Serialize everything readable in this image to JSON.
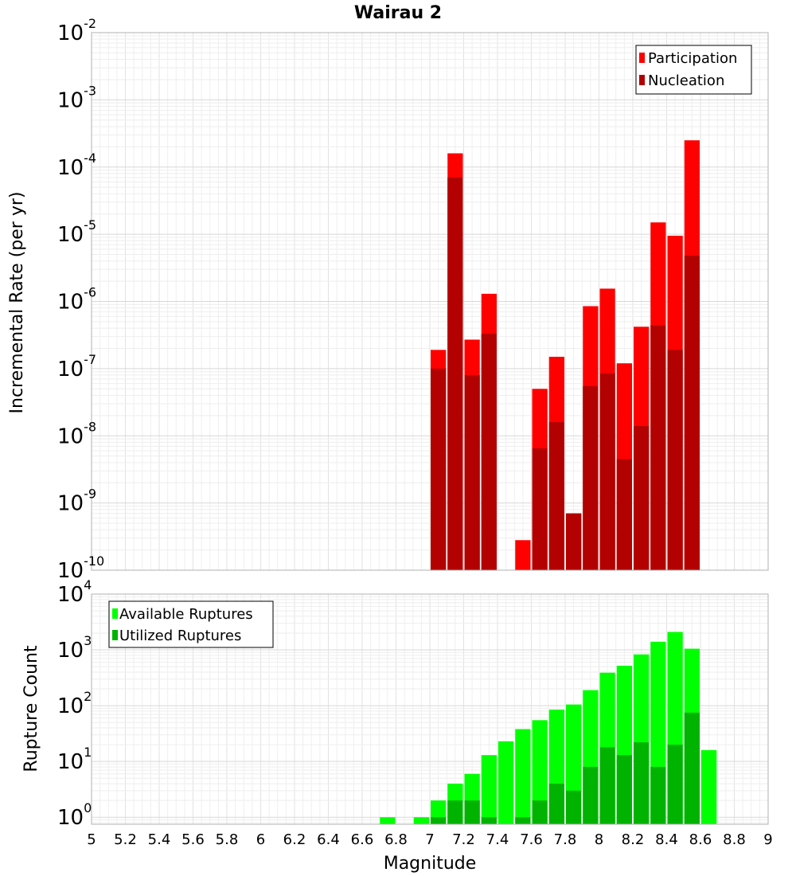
{
  "chart_data": [
    {
      "type": "bar",
      "title": "Wairau 2",
      "xlabel": "",
      "ylabel": "Incremental Rate (per yr)",
      "yscale": "log",
      "ylim": [
        1e-10,
        0.01
      ],
      "xlim": [
        5,
        9
      ],
      "grid": true,
      "legend_position": "top-right",
      "legend": [
        "Participation",
        "Nucleation"
      ],
      "colors": {
        "Participation": "#ff0000",
        "Nucleation": "#b30000"
      },
      "x": [
        7.05,
        7.15,
        7.25,
        7.35,
        7.55,
        7.65,
        7.75,
        7.85,
        7.95,
        8.05,
        8.15,
        8.25,
        8.35,
        8.45,
        8.55
      ],
      "series": [
        {
          "name": "Participation",
          "values": [
            1.9e-07,
            0.00016,
            2.7e-07,
            1.3e-06,
            2.8e-10,
            5e-08,
            1.5e-07,
            7e-10,
            8.5e-07,
            1.55e-06,
            1.2e-07,
            4.2e-07,
            1.5e-05,
            9.5e-06,
            0.00025
          ]
        },
        {
          "name": "Nucleation",
          "values": [
            1e-07,
            7e-05,
            8e-08,
            3.3e-07,
            null,
            6.5e-09,
            1.6e-08,
            7e-10,
            5.5e-08,
            8.5e-08,
            4.5e-09,
            1.4e-08,
            4.4e-07,
            1.9e-07,
            4.8e-06
          ]
        }
      ]
    },
    {
      "type": "bar",
      "title": "",
      "xlabel": "Magnitude",
      "ylabel": "Rupture Count",
      "yscale": "log",
      "ylim": [
        0.75,
        10000
      ],
      "xlim": [
        5,
        9
      ],
      "grid": true,
      "legend_position": "top-left",
      "legend": [
        "Available Ruptures",
        "Utilized Ruptures"
      ],
      "colors": {
        "Available Ruptures": "#00ff00",
        "Utilized Ruptures": "#00b300"
      },
      "x_ticks": [
        "5",
        "5.2",
        "5.4",
        "5.6",
        "5.8",
        "6",
        "6.2",
        "6.4",
        "6.6",
        "6.8",
        "7",
        "7.2",
        "7.4",
        "7.6",
        "7.8",
        "8",
        "8.2",
        "8.4",
        "8.6",
        "8.8",
        "9"
      ],
      "x": [
        6.75,
        6.95,
        7.05,
        7.15,
        7.25,
        7.35,
        7.45,
        7.55,
        7.65,
        7.75,
        7.85,
        7.95,
        8.05,
        8.15,
        8.25,
        8.35,
        8.45,
        8.55,
        8.65
      ],
      "series": [
        {
          "name": "Available Ruptures",
          "values": [
            1,
            1,
            2,
            4,
            6,
            13,
            23,
            38,
            55,
            85,
            105,
            190,
            390,
            520,
            830,
            1400,
            2100,
            1050,
            16
          ]
        },
        {
          "name": "Utilized Ruptures",
          "values": [
            null,
            null,
            1,
            2,
            2,
            1,
            null,
            1,
            2,
            4,
            3,
            8,
            18,
            13,
            22,
            8,
            20,
            75,
            null
          ]
        }
      ]
    }
  ]
}
